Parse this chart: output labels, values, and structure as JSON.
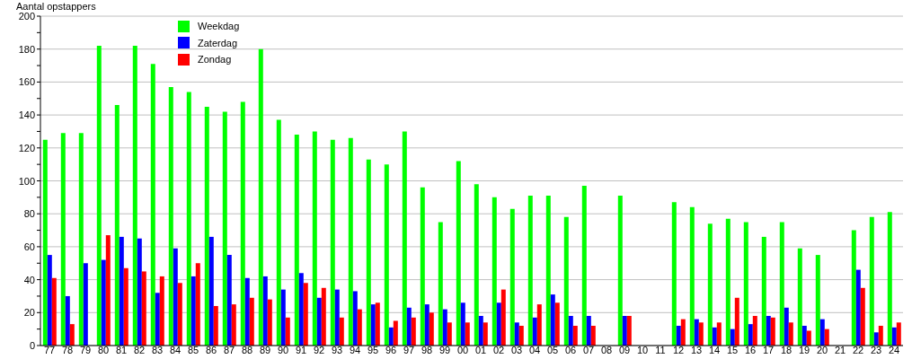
{
  "chart_data": {
    "type": "bar",
    "ylabel": "Aantal opstappers",
    "categories": [
      "77",
      "78",
      "79",
      "80",
      "81",
      "82",
      "83",
      "84",
      "85",
      "86",
      "87",
      "88",
      "89",
      "90",
      "91",
      "92",
      "93",
      "94",
      "95",
      "96",
      "97",
      "98",
      "99",
      "00",
      "01",
      "02",
      "03",
      "04",
      "05",
      "06",
      "07",
      "08",
      "09",
      "10",
      "11",
      "12",
      "13",
      "14",
      "15",
      "16",
      "17",
      "18",
      "19",
      "20",
      "21",
      "22",
      "23",
      "24"
    ],
    "series": [
      {
        "name": "Weekdag",
        "color": "#00ff00",
        "values": [
          125,
          129,
          129,
          182,
          146,
          182,
          171,
          157,
          154,
          145,
          142,
          148,
          180,
          137,
          128,
          130,
          125,
          126,
          113,
          110,
          130,
          96,
          75,
          112,
          98,
          90,
          83,
          91,
          91,
          78,
          97,
          null,
          91,
          null,
          null,
          87,
          84,
          74,
          77,
          75,
          66,
          75,
          59,
          55,
          null,
          70,
          78,
          81
        ]
      },
      {
        "name": "Zaterdag",
        "color": "#0000ff",
        "values": [
          55,
          30,
          50,
          52,
          66,
          65,
          32,
          59,
          42,
          66,
          55,
          41,
          42,
          34,
          44,
          29,
          34,
          33,
          25,
          11,
          23,
          25,
          22,
          26,
          18,
          26,
          14,
          17,
          31,
          18,
          18,
          null,
          18,
          null,
          null,
          12,
          16,
          11,
          10,
          13,
          18,
          23,
          12,
          16,
          null,
          46,
          8,
          11
        ]
      },
      {
        "name": "Zondag",
        "color": "#ff0000",
        "values": [
          41,
          13,
          null,
          67,
          47,
          45,
          42,
          38,
          50,
          24,
          25,
          29,
          28,
          17,
          38,
          35,
          17,
          22,
          26,
          15,
          17,
          20,
          14,
          14,
          14,
          34,
          12,
          25,
          26,
          12,
          12,
          null,
          18,
          null,
          null,
          16,
          14,
          14,
          29,
          18,
          17,
          14,
          9,
          10,
          null,
          35,
          12,
          14
        ]
      }
    ],
    "ylim": [
      0,
      200
    ],
    "yticks": [
      0,
      {
        "value": 10,
        "label": null
      },
      20,
      {
        "value": 30,
        "label": null
      },
      40,
      {
        "value": 50,
        "label": null
      },
      60,
      {
        "value": 70,
        "label": null
      },
      80,
      {
        "value": 90,
        "label": null
      },
      100,
      {
        "value": 110,
        "label": null
      },
      120,
      {
        "value": 130,
        "label": null
      },
      140,
      {
        "value": 150,
        "label": null
      },
      160,
      {
        "value": 170,
        "label": null
      },
      180,
      {
        "value": 190,
        "label": null
      },
      200
    ],
    "grid": "y",
    "legend": "top left"
  }
}
